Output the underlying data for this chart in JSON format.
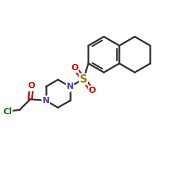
{
  "bg_color": "#ffffff",
  "bond_color": "#2f2f2f",
  "bond_width": 1.8,
  "N_color": "#4040cc",
  "O_color": "#dd0000",
  "S_color": "#888800",
  "Cl_color": "#007700",
  "fig_width": 2.5,
  "fig_height": 2.5,
  "dpi": 100,
  "xlim": [
    0,
    10
  ],
  "ylim": [
    0,
    10
  ],
  "arom_r": 1.05,
  "sat_r": 1.05,
  "pip_r": 0.82
}
